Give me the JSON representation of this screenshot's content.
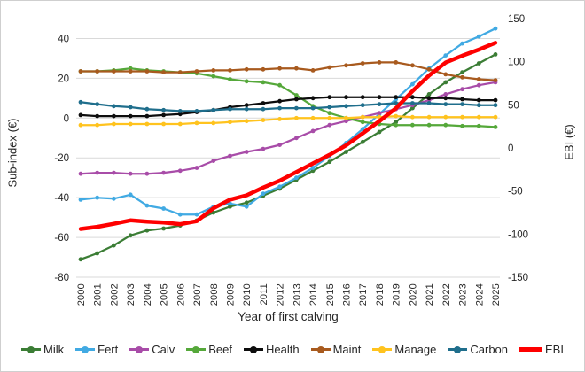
{
  "chart_data": {
    "type": "line",
    "title": "",
    "grid": true,
    "legend_position": "bottom",
    "x_axis": {
      "title": "Year of first calving",
      "categories": [
        "2000",
        "2001",
        "2002",
        "2003",
        "2004",
        "2005",
        "2006",
        "2007",
        "2008",
        "2009",
        "2010",
        "2011",
        "2012",
        "2013",
        "2014",
        "2015",
        "2016",
        "2017",
        "2018",
        "2019",
        "2020",
        "2021",
        "2022",
        "2023",
        "2024",
        "2025"
      ]
    },
    "left_axis": {
      "title": "Sub-index (€)",
      "ticks": [
        40,
        20,
        0,
        -20,
        -40,
        -60,
        -80
      ],
      "min": -80,
      "max": 50
    },
    "right_axis": {
      "title": "EBI (€)",
      "ticks": [
        150,
        100,
        50,
        0,
        -50,
        -100,
        -150
      ],
      "min": -150,
      "max": 150
    },
    "grid_color": "#d9d9d9",
    "series": [
      {
        "name": "Milk",
        "axis": "left",
        "color": "#3b7d35",
        "width": 2.25,
        "marker": true,
        "values": [
          -71,
          -68,
          -64,
          -59,
          -56.5,
          -55.5,
          -54,
          -51.5,
          -47.5,
          -44.5,
          -42.5,
          -39,
          -35.5,
          -31,
          -26.5,
          -22,
          -17,
          -12,
          -7,
          -2,
          5,
          12,
          18,
          23,
          27.5,
          32
        ]
      },
      {
        "name": "Fert",
        "axis": "left",
        "color": "#41aae3",
        "width": 2.25,
        "marker": true,
        "values": [
          -41,
          -40,
          -40.5,
          -38.5,
          -44,
          -45.5,
          -48.5,
          -48.5,
          -44.5,
          -43,
          -44.5,
          -38,
          -34.5,
          -30,
          -25,
          -19,
          -12.5,
          -5.5,
          2,
          9.5,
          17,
          25,
          31.5,
          37.5,
          41,
          45
        ]
      },
      {
        "name": "Calv",
        "axis": "left",
        "color": "#a84ca8",
        "width": 2.25,
        "marker": true,
        "values": [
          -28,
          -27.5,
          -27.5,
          -28,
          -28,
          -27.5,
          -26.5,
          -25,
          -21.5,
          -19,
          -17,
          -15.5,
          -13.5,
          -10,
          -6.5,
          -3.5,
          -1.5,
          0.5,
          2.5,
          4.5,
          6.5,
          9,
          12,
          14.5,
          16.5,
          18
        ]
      },
      {
        "name": "Beef",
        "axis": "left",
        "color": "#55a83a",
        "width": 2.25,
        "marker": true,
        "values": [
          23.5,
          23.5,
          24,
          25,
          24,
          23.5,
          23,
          22.5,
          21,
          19.5,
          18.5,
          18,
          16.5,
          11.5,
          6,
          2.5,
          0,
          -2,
          -3,
          -3.5,
          -3.5,
          -3.5,
          -3.5,
          -4,
          -4,
          -4.5
        ]
      },
      {
        "name": "Health",
        "axis": "left",
        "color": "#0d0d0d",
        "width": 2.25,
        "marker": true,
        "values": [
          1.5,
          1,
          1,
          1,
          1,
          1.5,
          2,
          3,
          4,
          5.5,
          6.5,
          7.5,
          8.5,
          9.5,
          10,
          10.5,
          10.5,
          10.5,
          10.5,
          10.5,
          10.5,
          10,
          10,
          9.5,
          9,
          9
        ]
      },
      {
        "name": "Maint",
        "axis": "left",
        "color": "#a85a1e",
        "width": 2.25,
        "marker": true,
        "values": [
          23.5,
          23.5,
          23.5,
          23.5,
          23.5,
          23,
          23,
          23.5,
          24,
          24,
          24.5,
          24.5,
          25,
          25,
          24,
          25.5,
          26.5,
          27.5,
          28,
          28,
          26.5,
          24.5,
          22,
          20.5,
          19.5,
          19
        ]
      },
      {
        "name": "Manage",
        "axis": "left",
        "color": "#ffc31e",
        "width": 2.25,
        "marker": true,
        "values": [
          -3.5,
          -3.5,
          -3,
          -3,
          -3,
          -3,
          -3,
          -2.5,
          -2.5,
          -2,
          -1.5,
          -1,
          -0.5,
          0,
          0,
          0,
          0,
          0.5,
          0.5,
          1,
          0.5,
          0.5,
          0.5,
          0.5,
          0.5,
          0.5
        ]
      },
      {
        "name": "Carbon",
        "axis": "left",
        "color": "#1f6e8c",
        "width": 2.25,
        "marker": true,
        "values": [
          8,
          7,
          6,
          5.5,
          4.5,
          4,
          3.5,
          3.5,
          4,
          4.5,
          4.5,
          4.5,
          5,
          5,
          5,
          5.5,
          6,
          6.5,
          7,
          7.5,
          7.5,
          7.5,
          7,
          7,
          6.5,
          6.5
        ]
      },
      {
        "name": "EBI",
        "axis": "right",
        "color": "#fe0000",
        "width": 4.5,
        "marker": false,
        "values": [
          -94,
          -91.5,
          -88,
          -84,
          -85.5,
          -86.5,
          -88.5,
          -85,
          -70,
          -60,
          -55,
          -46,
          -38,
          -28,
          -18,
          -8,
          3,
          17,
          31,
          46,
          66,
          84,
          99,
          107,
          114,
          122
        ]
      }
    ]
  }
}
